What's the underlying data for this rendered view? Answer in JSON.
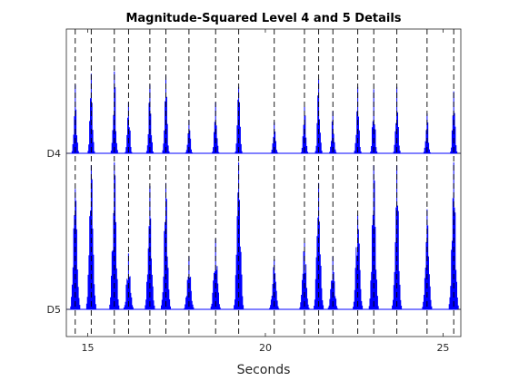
{
  "chart_data": {
    "type": "line",
    "title": "Magnitude-Squared Level 4 and 5 Details",
    "xlabel": "Seconds",
    "ylabel": "",
    "xlim": [
      14.4,
      25.5
    ],
    "x_ticks": [
      15,
      20,
      25
    ],
    "y_tick_labels": [
      "D4",
      "D5"
    ],
    "grid": false,
    "line_color": "#0000ff",
    "marker_line_color": "#000000",
    "beat_times": [
      14.65,
      15.1,
      15.75,
      16.15,
      16.75,
      17.2,
      17.85,
      18.6,
      19.25,
      20.25,
      21.1,
      21.5,
      21.9,
      22.6,
      23.05,
      23.7,
      24.55,
      25.3
    ],
    "series": [
      {
        "name": "D4",
        "peaks": [
          {
            "x": 14.65,
            "h": 0.62
          },
          {
            "x": 15.1,
            "h": 0.72
          },
          {
            "x": 15.75,
            "h": 0.74
          },
          {
            "x": 16.15,
            "h": 0.46
          },
          {
            "x": 16.75,
            "h": 0.62
          },
          {
            "x": 17.2,
            "h": 0.7
          },
          {
            "x": 17.85,
            "h": 0.3
          },
          {
            "x": 18.6,
            "h": 0.46
          },
          {
            "x": 19.25,
            "h": 0.6
          },
          {
            "x": 20.25,
            "h": 0.28
          },
          {
            "x": 21.1,
            "h": 0.42
          },
          {
            "x": 21.5,
            "h": 0.67
          },
          {
            "x": 21.9,
            "h": 0.38
          },
          {
            "x": 22.6,
            "h": 0.6
          },
          {
            "x": 23.05,
            "h": 0.58
          },
          {
            "x": 23.7,
            "h": 0.6
          },
          {
            "x": 24.55,
            "h": 0.36
          },
          {
            "x": 25.3,
            "h": 0.56
          }
        ]
      },
      {
        "name": "D5",
        "peaks": [
          {
            "x": 14.65,
            "h": 0.82
          },
          {
            "x": 15.1,
            "h": 0.98
          },
          {
            "x": 15.75,
            "h": 1.0
          },
          {
            "x": 16.15,
            "h": 0.38
          },
          {
            "x": 16.75,
            "h": 0.84
          },
          {
            "x": 17.2,
            "h": 0.86
          },
          {
            "x": 17.85,
            "h": 0.36
          },
          {
            "x": 18.6,
            "h": 0.48
          },
          {
            "x": 19.25,
            "h": 1.0
          },
          {
            "x": 20.25,
            "h": 0.34
          },
          {
            "x": 21.1,
            "h": 0.46
          },
          {
            "x": 21.5,
            "h": 0.86
          },
          {
            "x": 21.9,
            "h": 0.36
          },
          {
            "x": 22.6,
            "h": 0.64
          },
          {
            "x": 23.05,
            "h": 0.98
          },
          {
            "x": 23.7,
            "h": 0.98
          },
          {
            "x": 24.55,
            "h": 0.68
          },
          {
            "x": 25.3,
            "h": 1.0
          }
        ]
      }
    ]
  }
}
